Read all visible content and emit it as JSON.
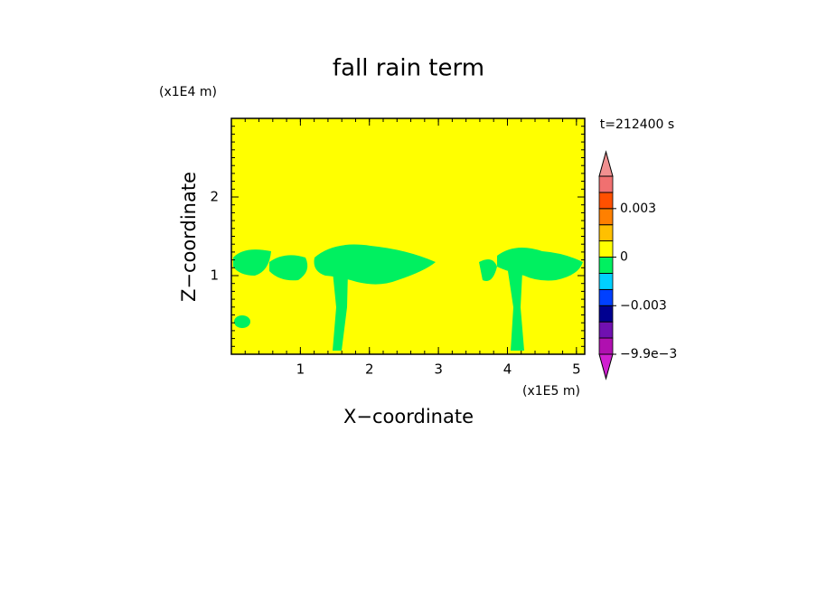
{
  "chart_data": {
    "type": "contour",
    "title": "fall rain term",
    "time_label": "t=212400 s",
    "x_label": "X−coordinate",
    "y_label": "Z−coordinate",
    "x_unit": "(x1E5 m)",
    "y_unit": "(x1E4 m)",
    "xlim": [
      0,
      5.12
    ],
    "xticks": [
      1,
      2,
      3,
      4,
      5
    ],
    "ylim": [
      0,
      3
    ],
    "yticks": [
      1,
      2
    ],
    "background_color": "#ffff00",
    "region_color": "#00f060",
    "colorbar": {
      "levels": [
        -0.0099,
        -0.006,
        -0.004,
        -0.003,
        -0.002,
        -0.001,
        0,
        0.001,
        0.002,
        0.003,
        0.004,
        0.005
      ],
      "colors": [
        "#d020d0",
        "#b010b0",
        "#7010b0",
        "#000090",
        "#0040ff",
        "#00d0ff",
        "#00f060",
        "#ffff00",
        "#ffc000",
        "#ff8000",
        "#ff5000",
        "#f07070",
        "#f09090"
      ],
      "ticks": [
        {
          "value": 0.003,
          "label": "0.003"
        },
        0,
        {
          "value": -0.003,
          "label": "−0.003"
        },
        {
          "value": -0.0099,
          "label": "−9.9e−3"
        }
      ]
    }
  }
}
